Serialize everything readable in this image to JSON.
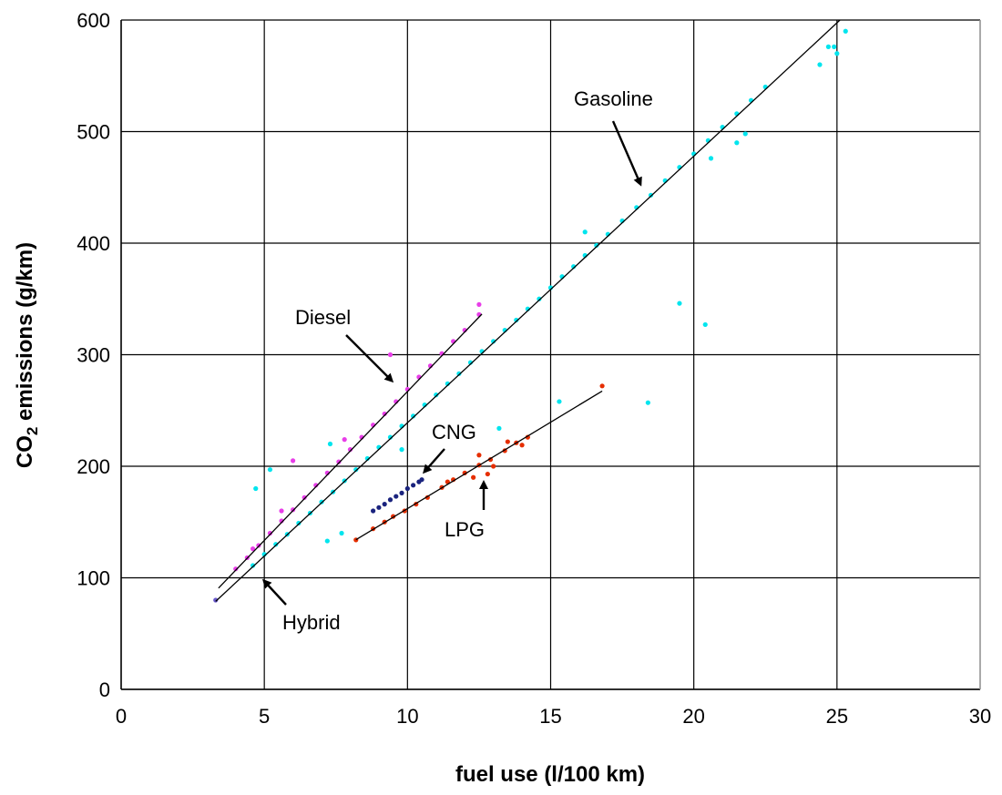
{
  "chart_data": {
    "type": "scatter",
    "xlabel": "fuel use (l/100 km)",
    "ylabel_main": "CO",
    "ylabel_sub": "2",
    "ylabel_rest": " emissions (g/km)",
    "xlim": [
      0,
      30
    ],
    "ylim": [
      0,
      600
    ],
    "x_ticks": [
      "0",
      "5",
      "10",
      "15",
      "20",
      "25",
      "30"
    ],
    "y_ticks": [
      "0",
      "100",
      "200",
      "300",
      "400",
      "500",
      "600"
    ],
    "grid": true,
    "colors": {
      "gasoline": "#00e5ee",
      "diesel": "#e83ee8",
      "cng": "#1a237e",
      "lpg": "#e62e00",
      "hybrid": "#6a5acd",
      "fit": "#000000"
    },
    "series": [
      {
        "key": "gasoline",
        "fit": {
          "slope": 23.9,
          "intercept": 0,
          "x_range": [
            3.3,
            25.1
          ]
        },
        "points": [
          [
            4.6,
            111
          ],
          [
            5.0,
            121
          ],
          [
            5.4,
            130
          ],
          [
            5.8,
            139
          ],
          [
            6.2,
            149
          ],
          [
            6.6,
            158
          ],
          [
            7.0,
            168
          ],
          [
            7.4,
            177
          ],
          [
            7.8,
            187
          ],
          [
            8.2,
            197
          ],
          [
            8.6,
            207
          ],
          [
            9.0,
            217
          ],
          [
            9.4,
            226
          ],
          [
            9.8,
            236
          ],
          [
            10.2,
            245
          ],
          [
            10.6,
            255
          ],
          [
            11.0,
            264
          ],
          [
            11.4,
            274
          ],
          [
            11.8,
            283
          ],
          [
            12.2,
            293
          ],
          [
            12.6,
            303
          ],
          [
            13.0,
            312
          ],
          [
            13.4,
            322
          ],
          [
            13.8,
            331
          ],
          [
            14.2,
            341
          ],
          [
            14.6,
            350
          ],
          [
            15.0,
            360
          ],
          [
            15.4,
            370
          ],
          [
            15.8,
            379
          ],
          [
            16.2,
            389
          ],
          [
            16.6,
            398
          ],
          [
            17.0,
            408
          ],
          [
            17.5,
            420
          ],
          [
            18.0,
            432
          ],
          [
            18.5,
            443
          ],
          [
            19.0,
            456
          ],
          [
            19.5,
            468
          ],
          [
            20.0,
            480
          ],
          [
            20.5,
            492
          ],
          [
            21.0,
            504
          ],
          [
            21.5,
            516
          ],
          [
            22.0,
            528
          ],
          [
            22.5,
            540
          ],
          [
            24.4,
            560
          ],
          [
            24.7,
            576
          ],
          [
            24.9,
            576
          ],
          [
            25.0,
            570
          ],
          [
            25.3,
            590
          ],
          [
            4.7,
            180
          ],
          [
            5.2,
            197
          ],
          [
            7.3,
            220
          ],
          [
            7.7,
            140
          ],
          [
            7.2,
            133
          ],
          [
            9.8,
            215
          ],
          [
            13.2,
            234
          ],
          [
            15.3,
            258
          ],
          [
            18.4,
            257
          ],
          [
            19.5,
            346
          ],
          [
            20.4,
            327
          ],
          [
            16.2,
            410
          ],
          [
            21.5,
            490
          ],
          [
            21.8,
            498
          ],
          [
            20.6,
            476
          ]
        ]
      },
      {
        "key": "diesel",
        "fit": {
          "slope": 26.7,
          "intercept": 0,
          "x_range": [
            3.4,
            12.6
          ]
        },
        "points": [
          [
            4.0,
            108
          ],
          [
            4.4,
            118
          ],
          [
            4.8,
            129
          ],
          [
            5.2,
            140
          ],
          [
            5.6,
            151
          ],
          [
            6.0,
            161
          ],
          [
            6.4,
            172
          ],
          [
            6.8,
            183
          ],
          [
            7.2,
            194
          ],
          [
            7.6,
            204
          ],
          [
            8.0,
            215
          ],
          [
            8.4,
            226
          ],
          [
            8.8,
            237
          ],
          [
            9.2,
            247
          ],
          [
            9.6,
            258
          ],
          [
            10.0,
            269
          ],
          [
            10.4,
            280
          ],
          [
            10.8,
            290
          ],
          [
            11.2,
            301
          ],
          [
            11.6,
            312
          ],
          [
            12.0,
            322
          ],
          [
            12.5,
            336
          ],
          [
            12.5,
            345
          ],
          [
            9.4,
            300
          ],
          [
            6.0,
            205
          ],
          [
            7.8,
            224
          ],
          [
            5.6,
            160
          ],
          [
            4.6,
            126
          ]
        ]
      },
      {
        "key": "cng",
        "fit": null,
        "points": [
          [
            8.8,
            160
          ],
          [
            9.0,
            163
          ],
          [
            9.2,
            166
          ],
          [
            9.4,
            170
          ],
          [
            9.6,
            173
          ],
          [
            9.8,
            176
          ],
          [
            10.0,
            180
          ],
          [
            10.2,
            183
          ],
          [
            10.4,
            186
          ],
          [
            10.5,
            188
          ]
        ]
      },
      {
        "key": "lpg",
        "fit": {
          "slope": 15.5,
          "intercept": 7,
          "x_range": [
            8.2,
            16.8
          ]
        },
        "points": [
          [
            8.2,
            134
          ],
          [
            8.8,
            144
          ],
          [
            9.2,
            150
          ],
          [
            9.5,
            155
          ],
          [
            9.9,
            160
          ],
          [
            10.3,
            166
          ],
          [
            10.7,
            172
          ],
          [
            11.2,
            181
          ],
          [
            11.6,
            188
          ],
          [
            12.0,
            194
          ],
          [
            12.5,
            201
          ],
          [
            12.9,
            206
          ],
          [
            13.4,
            214
          ],
          [
            13.8,
            221
          ],
          [
            14.2,
            226
          ],
          [
            11.4,
            186
          ],
          [
            12.3,
            190
          ],
          [
            12.8,
            193
          ],
          [
            13.0,
            200
          ],
          [
            14.0,
            219
          ],
          [
            16.8,
            272
          ],
          [
            12.5,
            210
          ],
          [
            13.5,
            222
          ]
        ]
      },
      {
        "key": "hybrid",
        "fit": null,
        "points": [
          [
            3.3,
            80
          ]
        ]
      }
    ],
    "annotations": [
      {
        "key": "gasoline",
        "text": "Gasoline",
        "label_xy": [
          630,
          116
        ],
        "arrow_from": [
          673,
          133
        ],
        "arrow_to": [
          703,
          202
        ]
      },
      {
        "key": "diesel",
        "text": "Diesel",
        "label_xy": [
          324,
          356
        ],
        "arrow_from": [
          380,
          368
        ],
        "arrow_to": [
          430,
          418
        ]
      },
      {
        "key": "cng",
        "text": "CNG",
        "label_xy": [
          474,
          482
        ],
        "arrow_from": [
          488,
          493
        ],
        "arrow_to": [
          466,
          518
        ]
      },
      {
        "key": "lpg",
        "text": "LPG",
        "label_xy": [
          488,
          589
        ],
        "arrow_from": [
          531,
          560
        ],
        "arrow_to": [
          531,
          530
        ]
      },
      {
        "key": "hybrid",
        "text": "Hybrid",
        "label_xy": [
          310,
          691
        ],
        "arrow_from": [
          314,
          664
        ],
        "arrow_to": [
          290,
          638
        ]
      }
    ]
  }
}
